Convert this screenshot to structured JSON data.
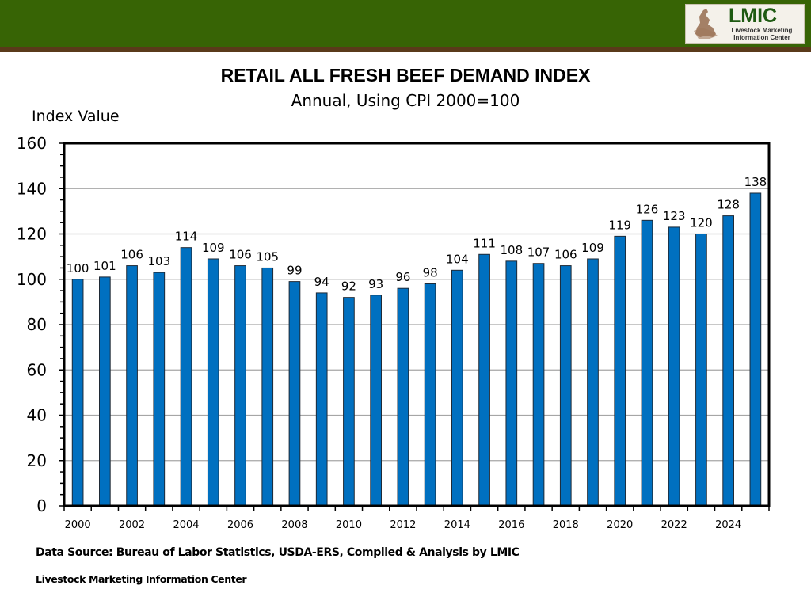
{
  "header": {
    "logo": {
      "main_text": "LMIC",
      "sub_text_line1": "Livestock Marketing",
      "sub_text_line2": "Information Center",
      "icon": "cattle-rider-icon"
    },
    "colors": {
      "bar_green": "#376405",
      "stripe_brown": "#5a3a1a"
    }
  },
  "chart_data": {
    "type": "bar",
    "title": "RETAIL ALL FRESH BEEF DEMAND INDEX",
    "subtitle": "Annual, Using CPI 2000=100",
    "xlabel": "",
    "ylabel": "Index Value",
    "ylim": [
      0,
      160
    ],
    "yticks": [
      0,
      20,
      40,
      60,
      80,
      100,
      120,
      140,
      160
    ],
    "grid": true,
    "legend": "none",
    "bar_color": "#0070c0",
    "categories": [
      "2000",
      "2001",
      "2002",
      "2003",
      "2004",
      "2005",
      "2006",
      "2007",
      "2008",
      "2009",
      "2010",
      "2011",
      "2012",
      "2013",
      "2014",
      "2015",
      "2016",
      "2017",
      "2018",
      "2019",
      "2020",
      "2021",
      "2022",
      "2023",
      "2024",
      "2025"
    ],
    "xtick_labels": [
      "2000",
      "2002",
      "2004",
      "2006",
      "2008",
      "2010",
      "2012",
      "2014",
      "2016",
      "2018",
      "2020",
      "2022",
      "2024"
    ],
    "values": [
      100,
      101,
      106,
      103,
      114,
      109,
      106,
      105,
      99,
      94,
      92,
      93,
      96,
      98,
      104,
      111,
      108,
      107,
      106,
      109,
      119,
      126,
      123,
      120,
      128,
      138
    ],
    "data_labels": [
      "100",
      "101",
      "106",
      "103",
      "114",
      "109",
      "106",
      "105",
      "99",
      "94",
      "92",
      "93",
      "96",
      "98",
      "104",
      "111",
      "108",
      "107",
      "106",
      "109",
      "119",
      "126",
      "123",
      "120",
      "128",
      "138"
    ]
  },
  "footer": {
    "source": "Data Source:  Bureau of Labor Statistics, USDA-ERS, Compiled & Analysis by LMIC",
    "organization": "Livestock Marketing Information Center"
  }
}
